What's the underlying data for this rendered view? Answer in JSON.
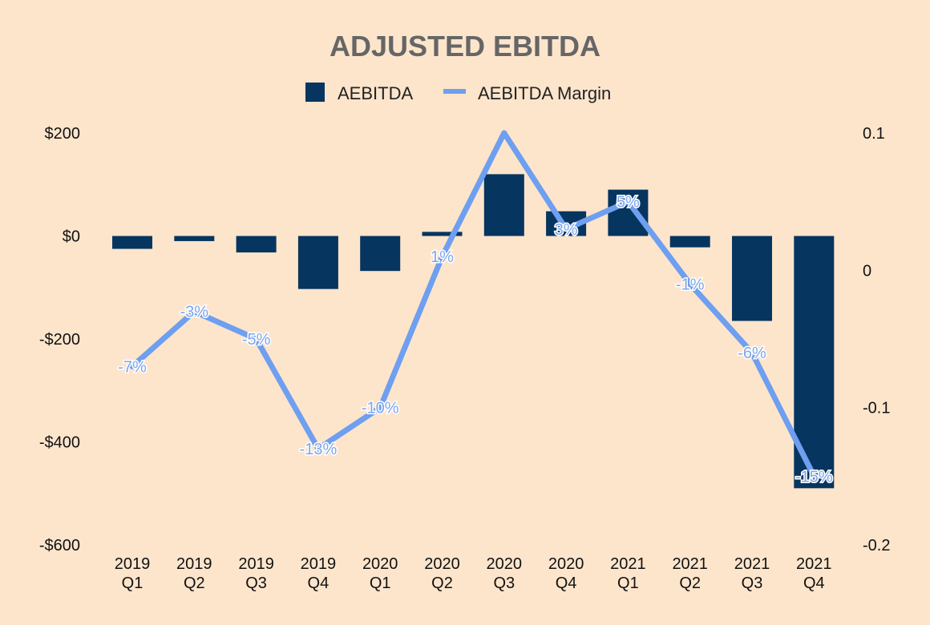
{
  "chart_data": {
    "type": "bar",
    "title": "ADJUSTED EBITDA",
    "categories": [
      [
        "2019",
        "Q1"
      ],
      [
        "2019",
        "Q2"
      ],
      [
        "2019",
        "Q3"
      ],
      [
        "2019",
        "Q4"
      ],
      [
        "2020",
        "Q1"
      ],
      [
        "2020",
        "Q2"
      ],
      [
        "2020",
        "Q3"
      ],
      [
        "2020",
        "Q4"
      ],
      [
        "2021",
        "Q1"
      ],
      [
        "2021",
        "Q2"
      ],
      [
        "2021",
        "Q3"
      ],
      [
        "2021",
        "Q4"
      ]
    ],
    "series": [
      {
        "name": "AEBITDA",
        "type": "bar",
        "axis": "left",
        "color": "#06355f",
        "values": [
          -25,
          -10,
          -32,
          -103,
          -68,
          8,
          120,
          48,
          90,
          -22,
          -165,
          -490
        ]
      },
      {
        "name": "AEBITDA Margin",
        "type": "line",
        "axis": "right",
        "color": "#6e9ff0",
        "values": [
          -0.07,
          -0.03,
          -0.05,
          -0.13,
          -0.1,
          0.01,
          0.1,
          0.03,
          0.05,
          -0.01,
          -0.06,
          -0.15
        ],
        "labels": [
          "-7%",
          "-3%",
          "-5%",
          "-13%",
          "-10%",
          "1%",
          "",
          "3%",
          "5%",
          "-1%",
          "-6%",
          "-15%"
        ]
      }
    ],
    "y_left": {
      "ylim": [
        -600,
        200
      ],
      "ticks": [
        200,
        0,
        -200,
        -400,
        -600
      ],
      "tick_labels": [
        "$200",
        "$0",
        "-$200",
        "-$400",
        "-$600"
      ]
    },
    "y_right": {
      "ylim": [
        -0.2,
        0.1
      ],
      "ticks": [
        0.1,
        0,
        -0.1,
        -0.2
      ],
      "tick_labels": [
        "0.1",
        "0",
        "-0.1",
        "-0.2"
      ]
    },
    "legend_position": "top-center",
    "grid": false
  }
}
